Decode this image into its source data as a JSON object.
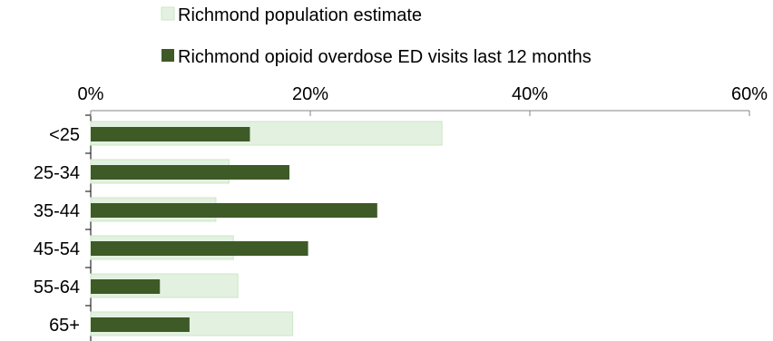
{
  "chart_data": {
    "type": "bar",
    "orientation": "horizontal",
    "categories": [
      "<25",
      "25-34",
      "35-44",
      "45-54",
      "55-64",
      "65+"
    ],
    "series": [
      {
        "name": "Richmond population estimate",
        "values": [
          32,
          12.6,
          11.4,
          13,
          13.4,
          18.4
        ],
        "color": "#e3f1e1",
        "border_color": "#cce6c5"
      },
      {
        "name": "Richmond opioid overdose ED visits last 12 months",
        "values": [
          14.5,
          18.1,
          26.1,
          19.8,
          6.3,
          9
        ]
      }
    ],
    "series_colors": {
      "population": "#e3f1e1",
      "visits": "#3e5a26"
    },
    "x_ticks": [
      "0%",
      "20%",
      "40%",
      "60%"
    ],
    "xlim": [
      0,
      60
    ],
    "x_axis_position": "top",
    "legend_position": "top",
    "grid": false,
    "title": "",
    "xlabel": "",
    "ylabel": ""
  }
}
